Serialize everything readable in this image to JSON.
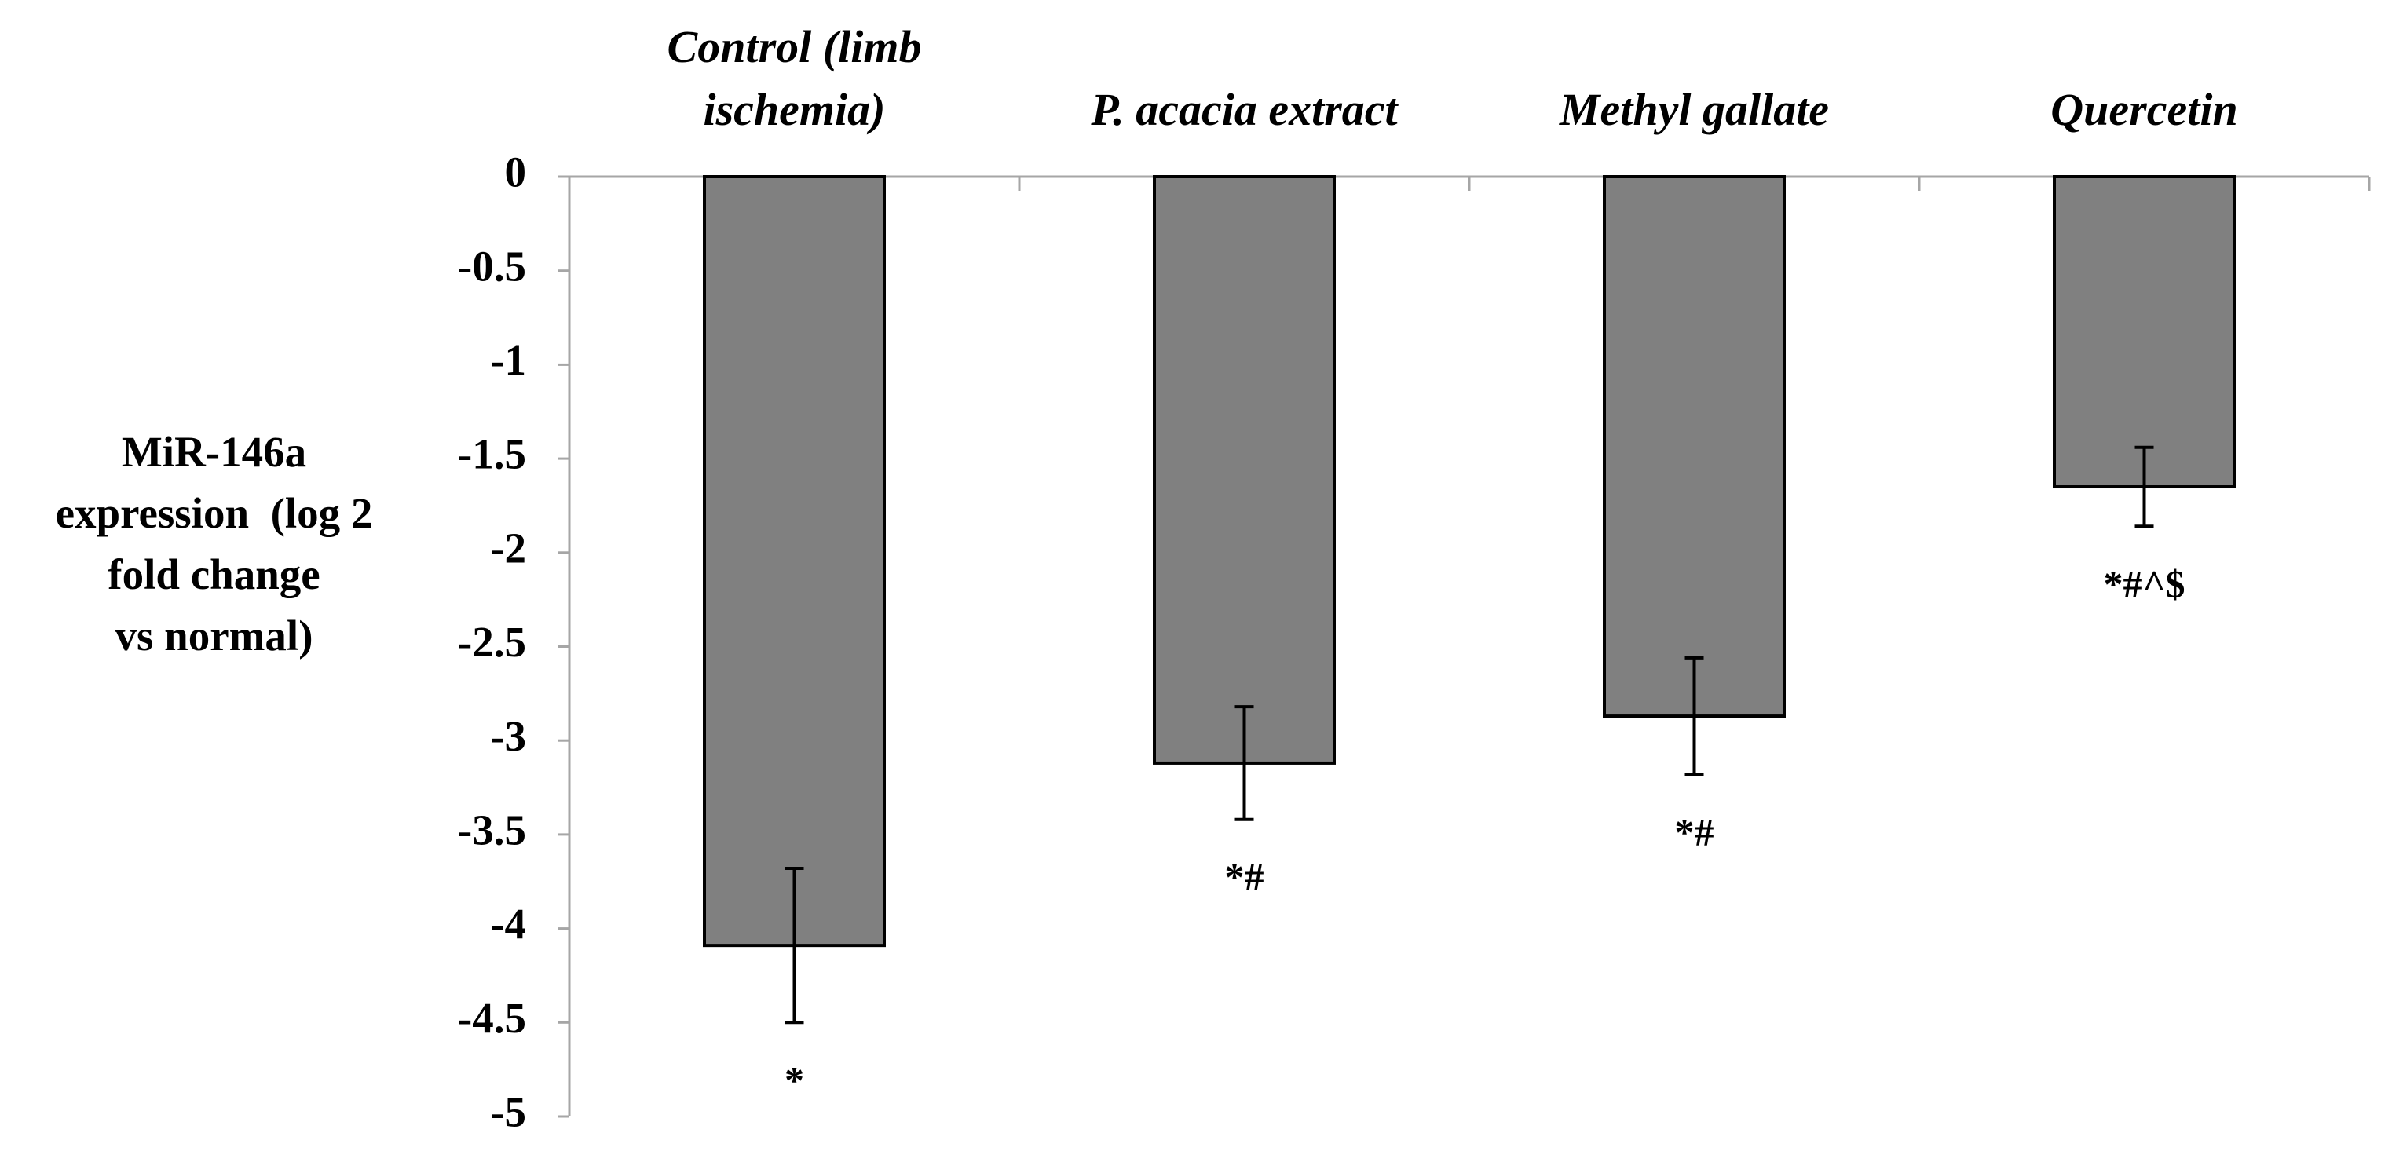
{
  "chart_data": {
    "type": "bar",
    "categories": [
      "Control (limb\nischemia)",
      "P. acacia extract",
      "Methyl gallate",
      "Quercetin"
    ],
    "values": [
      -4.09,
      -3.12,
      -2.87,
      -1.65
    ],
    "errors": [
      0.41,
      0.3,
      0.31,
      0.21
    ],
    "annotations": [
      "*",
      "*#",
      "*#",
      "*#^$"
    ],
    "xlabel": "",
    "ylabel": "MiR-146a\nexpression  (log 2\nfold change\nvs normal)",
    "ylim": [
      -5,
      0
    ],
    "yticks": [
      0,
      -0.5,
      -1,
      -1.5,
      -2,
      -2.5,
      -3,
      -3.5,
      -4,
      -4.5,
      -5
    ],
    "x_axis_position": "top",
    "grid": false,
    "legend": "none",
    "colors": {
      "bar": "#808080",
      "bar_edge": "#000000",
      "axis": "#a6a6a6",
      "text": "#000000"
    }
  }
}
